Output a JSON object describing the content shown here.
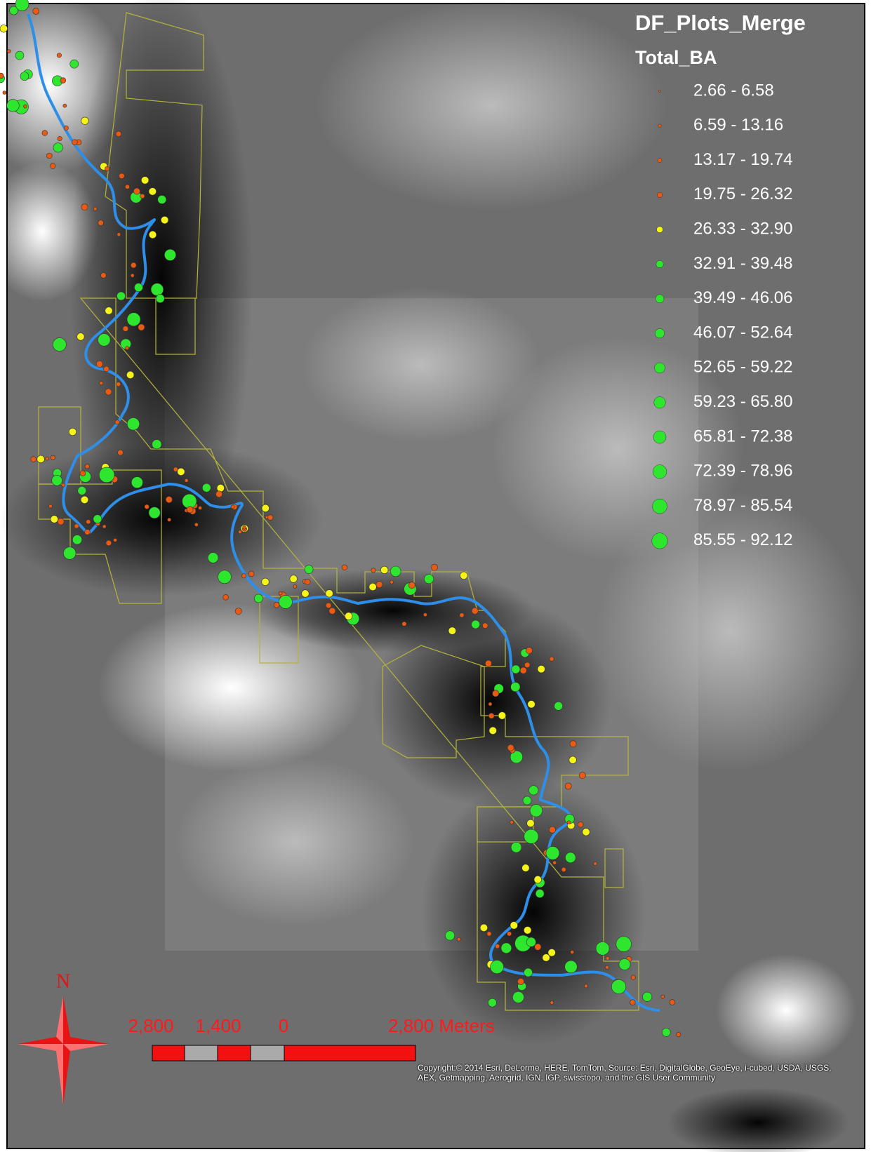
{
  "legend": {
    "title": "DF_Plots_Merge",
    "field": "Total_BA",
    "classes": [
      {
        "label": "2.66 - 6.58",
        "color": "#ea5a12"
      },
      {
        "label": "6.59 - 13.16",
        "color": "#ea5a12"
      },
      {
        "label": "13.17 - 19.74",
        "color": "#ea5a12"
      },
      {
        "label": "19.75 - 26.32",
        "color": "#ea5a12"
      },
      {
        "label": "26.33 - 32.90",
        "color": "#f4f41a"
      },
      {
        "label": "32.91 - 39.48",
        "color": "#2ee62e"
      },
      {
        "label": "39.49 - 46.06",
        "color": "#2ee62e"
      },
      {
        "label": "46.07 - 52.64",
        "color": "#2ee62e"
      },
      {
        "label": "52.65 - 59.22",
        "color": "#2ee62e"
      },
      {
        "label": "59.23 - 65.80",
        "color": "#2ee62e"
      },
      {
        "label": "65.81 - 72.38",
        "color": "#2ee62e"
      },
      {
        "label": "72.39 - 78.96",
        "color": "#2ee62e"
      },
      {
        "label": "78.97 - 85.54",
        "color": "#2ee62e"
      },
      {
        "label": "85.55 - 92.12",
        "color": "#2ee62e"
      }
    ]
  },
  "scale_bar": {
    "labels": [
      "2,800",
      "1,400",
      "0",
      "2,800 Meters"
    ]
  },
  "north_arrow": {
    "label": "N"
  },
  "attribution": "Copyright:© 2014 Esri, DeLorme, HERE, TomTom, Source: Esri, DigitalGlobe, GeoEye, i-cubed, USDA, USGS, AEX, Getmapping, Aerogrid, IGN, IGP, swisstopo, and the GIS User Community"
}
